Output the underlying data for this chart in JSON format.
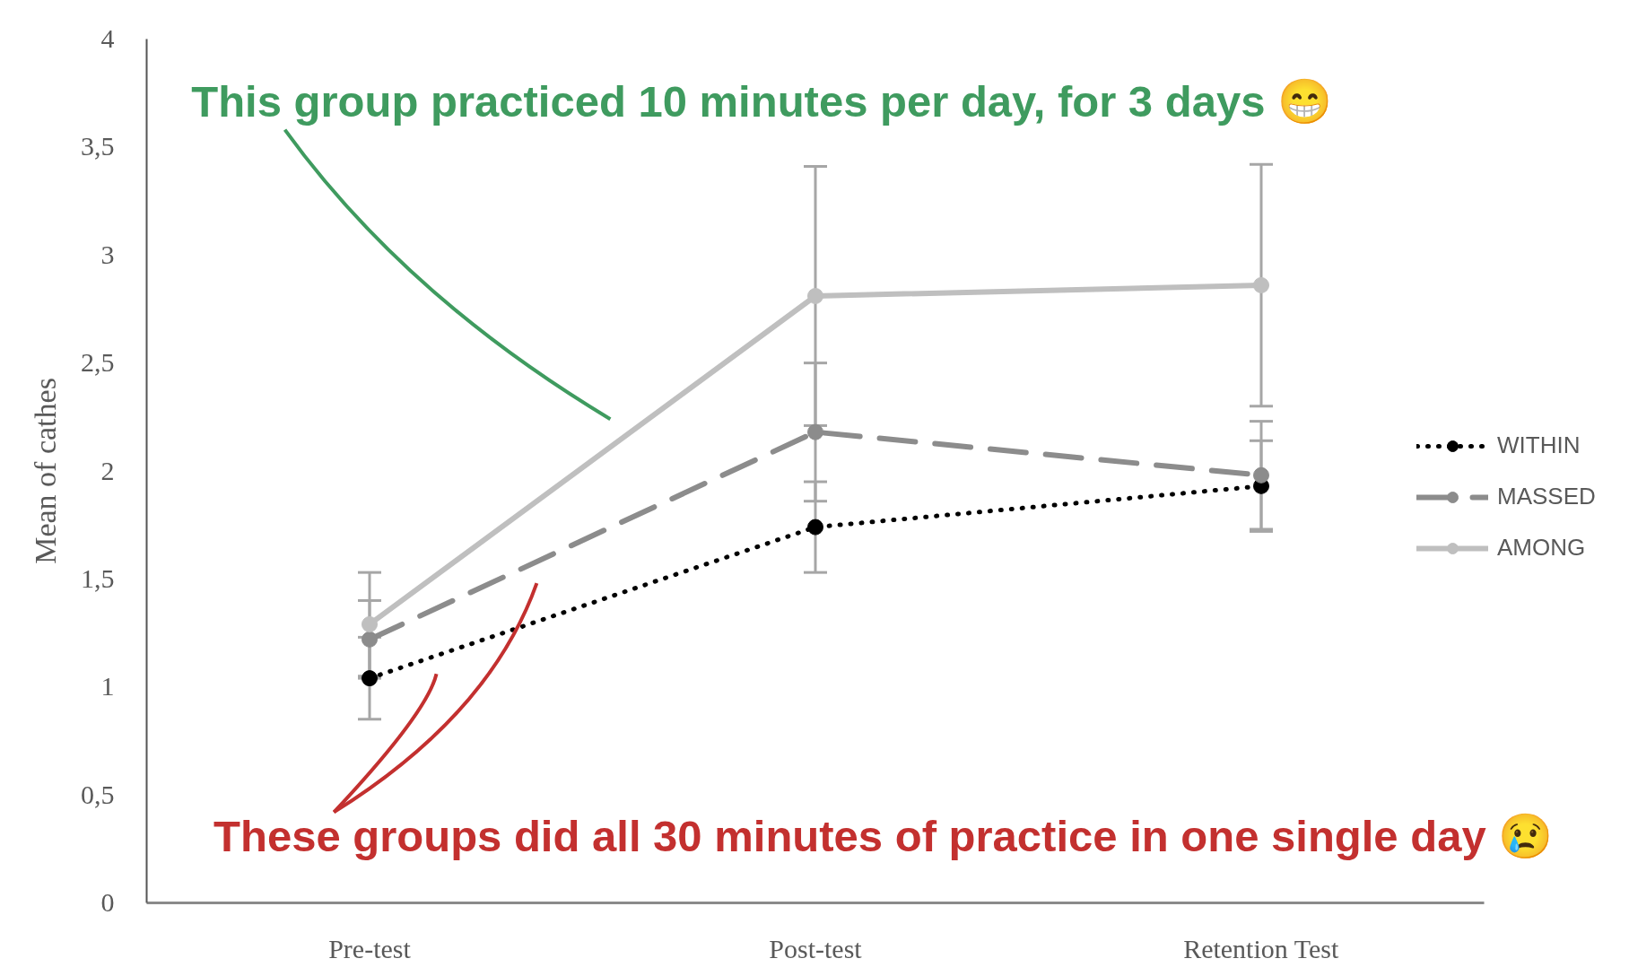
{
  "chart_data": {
    "type": "line",
    "ylabel": "Mean of cathes",
    "categories": [
      "Pre-test",
      "Post-test",
      "Retention Test"
    ],
    "series": [
      {
        "name": "WITHIN",
        "color": "#000000",
        "line_style": "dotted",
        "values": [
          1.04,
          1.74,
          1.93
        ],
        "errors": [
          0.19,
          0.21,
          0.21
        ]
      },
      {
        "name": "MASSED",
        "color": "#8c8c8c",
        "line_style": "dashed",
        "values": [
          1.22,
          2.18,
          1.98
        ],
        "errors": [
          0.18,
          0.32,
          0.25
        ]
      },
      {
        "name": "AMONG",
        "color": "#bfbfbf",
        "line_style": "solid",
        "values": [
          1.29,
          2.81,
          2.86
        ],
        "errors": [
          0.24,
          0.6,
          0.56
        ]
      }
    ],
    "ylim": [
      0,
      4
    ],
    "yticks": [
      0,
      {
        "value": 0.5,
        "label": "0,5"
      },
      1,
      {
        "value": 1.5,
        "label": "1,5"
      },
      2,
      {
        "value": 2.5,
        "label": "2,5"
      },
      3,
      {
        "value": 3.5,
        "label": "3,5"
      },
      4
    ],
    "marker": "circle",
    "grid": false,
    "legend": "right",
    "annotations": [
      "This group practiced 10 minutes per day, for 3 days 😁",
      "These groups did all 30 minutes of practice in one single day 😢"
    ]
  }
}
